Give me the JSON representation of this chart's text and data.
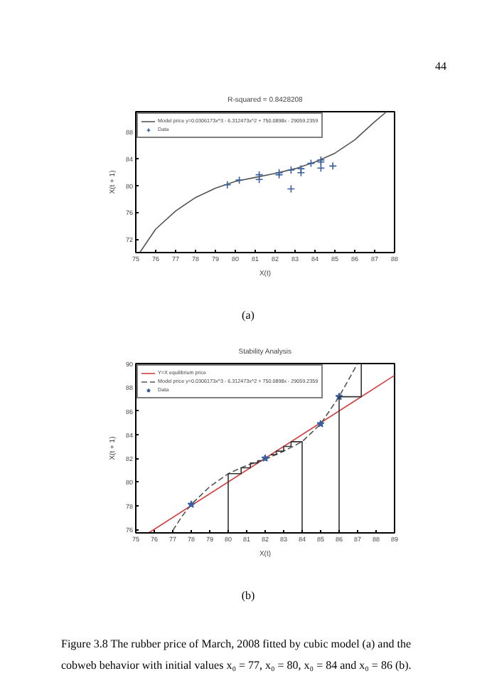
{
  "chart_data": [
    {
      "type": "line",
      "title": "R-squared = 0.8428208",
      "xlabel": "X(t)",
      "ylabel": "X(t + 1)",
      "xlim": [
        75,
        88
      ],
      "xticks": [
        75,
        76,
        77,
        78,
        79,
        80,
        81,
        82,
        83,
        84,
        85,
        86,
        87,
        88
      ],
      "ylim": [
        70,
        91
      ],
      "yticks": [
        72,
        76,
        80,
        84,
        88
      ],
      "grid": false,
      "legend": "top left",
      "annotations": [
        "44",
        "(a)"
      ],
      "series": [
        {
          "name": "Model price y=0.0306173x^3 - 6.312473x^2 + 750.0898x - 29059.2359",
          "color": "#555555",
          "line_style": "solid",
          "x": [
            75.2,
            76,
            77,
            78,
            79,
            80,
            81,
            82,
            83,
            84,
            85,
            86,
            87,
            87.6
          ],
          "values": [
            70,
            73.5,
            76.2,
            78.2,
            79.6,
            80.6,
            81.2,
            81.8,
            82.5,
            83.5,
            84.8,
            86.8,
            89.5,
            91
          ]
        },
        {
          "name": "Data",
          "type": "scatter",
          "color": "#3a5fa0",
          "marker": "cross",
          "x": [
            79.6,
            80.2,
            81.2,
            81.2,
            82.2,
            82.2,
            82.8,
            82.8,
            83.3,
            83.3,
            83.8,
            84.3,
            84.3,
            84.3,
            84.9
          ],
          "values": [
            80.1,
            80.8,
            81.6,
            80.9,
            81.9,
            81.6,
            82.3,
            79.5,
            81.9,
            82.5,
            83.3,
            83.5,
            82.6,
            83.8,
            82.9
          ]
        }
      ]
    },
    {
      "type": "line",
      "title": "Stability Analysis",
      "xlabel": "X(t)",
      "ylabel": "X(t + 1)",
      "xlim": [
        75,
        89
      ],
      "xticks": [
        75,
        76,
        77,
        78,
        79,
        80,
        81,
        82,
        83,
        84,
        85,
        86,
        87,
        88,
        89
      ],
      "ylim": [
        75.7,
        90
      ],
      "yticks": [
        76,
        78,
        80,
        82,
        84,
        86,
        88,
        90
      ],
      "grid": false,
      "legend": "top left",
      "annotations": [
        "(b)",
        "Figure 3.8 The rubber price of March, 2008 fitted by cubic model (a) and the cobweb behavior with initial values x₀ = 77, x₀ = 80, x₀ = 84 and x₀ = 86 (b)."
      ],
      "series": [
        {
          "name": "Y=X equilibrium price",
          "color": "#d04040",
          "line_style": "solid",
          "x": [
            75.7,
            89
          ],
          "values": [
            75.7,
            89
          ]
        },
        {
          "name": "Model price y=0.0306173x^3 - 6.312473x^2 + 750.0898x - 29059.2359",
          "color": "#555555",
          "line_style": "dashed",
          "x": [
            77,
            77.5,
            78,
            79,
            80,
            81,
            82,
            83,
            84,
            85,
            86,
            86.5,
            87
          ],
          "values": [
            75.9,
            77.1,
            78.1,
            79.6,
            80.7,
            81.4,
            81.9,
            82.6,
            83.4,
            84.9,
            87.2,
            88.6,
            90
          ]
        },
        {
          "name": "Data",
          "type": "scatter",
          "color": "#3a5fa0",
          "marker": "star",
          "x": [
            78,
            82,
            85,
            86
          ],
          "values": [
            78.1,
            82,
            84.9,
            87.2
          ]
        },
        {
          "type": "line",
          "color": "#333333",
          "line_style": "solid",
          "x": [
            80,
            80,
            80.7,
            80.7,
            81.2,
            81.2,
            81.6,
            81.6,
            81.8
          ],
          "values": [
            75.7,
            80.7,
            80.7,
            81.2,
            81.2,
            81.6,
            81.6,
            81.8,
            81.8
          ]
        },
        {
          "type": "line",
          "color": "#333333",
          "line_style": "solid",
          "x": [
            84,
            84,
            83.4,
            83.4,
            83,
            83,
            82.6,
            82.6,
            82.3
          ],
          "values": [
            75.7,
            83.4,
            83.4,
            83,
            83,
            82.6,
            82.6,
            82.3,
            82.3
          ]
        },
        {
          "type": "line",
          "color": "#333333",
          "line_style": "solid",
          "x": [
            86,
            86,
            87.2,
            87.2
          ],
          "values": [
            75.7,
            87.2,
            87.2,
            90
          ]
        }
      ]
    }
  ]
}
